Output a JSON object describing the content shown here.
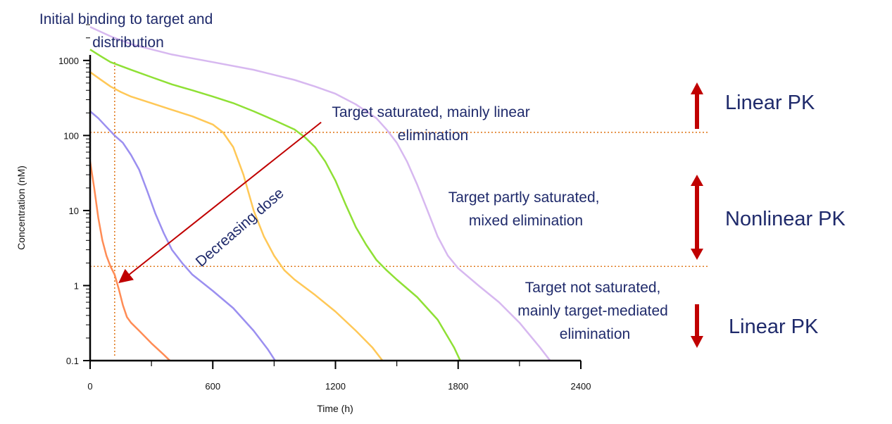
{
  "chart_data": {
    "type": "line",
    "xlabel": "Time (h)",
    "ylabel": "Concentration (nM)",
    "xlim": [
      0,
      2400
    ],
    "ylim": [
      0.1,
      3000
    ],
    "yscale": "log",
    "x_ticks": [
      "0",
      "600",
      "1200",
      "1800",
      "2400"
    ],
    "y_ticks": [
      "0.1",
      "1",
      "10",
      "100",
      "1000"
    ],
    "grid": false,
    "series": [
      {
        "color": "#ff8c55",
        "points": [
          [
            0,
            45
          ],
          [
            20,
            20
          ],
          [
            40,
            8
          ],
          [
            60,
            4
          ],
          [
            80,
            2.5
          ],
          [
            100,
            1.8
          ],
          [
            120,
            1.4
          ],
          [
            140,
            0.9
          ],
          [
            160,
            0.55
          ],
          [
            180,
            0.38
          ],
          [
            200,
            0.32
          ],
          [
            240,
            0.25
          ],
          [
            300,
            0.17
          ],
          [
            360,
            0.12
          ],
          [
            390,
            0.1
          ]
        ]
      },
      {
        "color": "#9b8ff0",
        "points": [
          [
            0,
            210
          ],
          [
            40,
            170
          ],
          [
            80,
            130
          ],
          [
            120,
            100
          ],
          [
            160,
            80
          ],
          [
            200,
            55
          ],
          [
            240,
            35
          ],
          [
            280,
            18
          ],
          [
            320,
            9
          ],
          [
            360,
            5
          ],
          [
            400,
            3
          ],
          [
            450,
            2
          ],
          [
            500,
            1.4
          ],
          [
            600,
            0.85
          ],
          [
            700,
            0.5
          ],
          [
            800,
            0.25
          ],
          [
            870,
            0.14
          ],
          [
            905,
            0.1
          ]
        ]
      },
      {
        "color": "#ffc857",
        "points": [
          [
            0,
            700
          ],
          [
            50,
            560
          ],
          [
            100,
            450
          ],
          [
            150,
            380
          ],
          [
            200,
            330
          ],
          [
            300,
            270
          ],
          [
            400,
            220
          ],
          [
            500,
            180
          ],
          [
            600,
            140
          ],
          [
            650,
            110
          ],
          [
            700,
            70
          ],
          [
            750,
            30
          ],
          [
            800,
            10
          ],
          [
            850,
            4.5
          ],
          [
            900,
            2.5
          ],
          [
            950,
            1.6
          ],
          [
            1000,
            1.2
          ],
          [
            1100,
            0.75
          ],
          [
            1200,
            0.45
          ],
          [
            1300,
            0.25
          ],
          [
            1380,
            0.15
          ],
          [
            1430,
            0.1
          ]
        ]
      },
      {
        "color": "#8fe035",
        "points": [
          [
            0,
            1400
          ],
          [
            50,
            1150
          ],
          [
            100,
            950
          ],
          [
            200,
            750
          ],
          [
            300,
            600
          ],
          [
            400,
            480
          ],
          [
            500,
            400
          ],
          [
            600,
            330
          ],
          [
            700,
            270
          ],
          [
            800,
            210
          ],
          [
            900,
            160
          ],
          [
            1000,
            120
          ],
          [
            1050,
            95
          ],
          [
            1100,
            70
          ],
          [
            1150,
            45
          ],
          [
            1200,
            25
          ],
          [
            1250,
            12
          ],
          [
            1300,
            6
          ],
          [
            1350,
            3.5
          ],
          [
            1400,
            2.2
          ],
          [
            1450,
            1.6
          ],
          [
            1500,
            1.2
          ],
          [
            1600,
            0.7
          ],
          [
            1700,
            0.35
          ],
          [
            1780,
            0.15
          ],
          [
            1810,
            0.1
          ]
        ]
      },
      {
        "color": "#d7b8f0",
        "points": [
          [
            0,
            2800
          ],
          [
            100,
            2100
          ],
          [
            200,
            1650
          ],
          [
            400,
            1200
          ],
          [
            600,
            950
          ],
          [
            800,
            750
          ],
          [
            1000,
            550
          ],
          [
            1100,
            450
          ],
          [
            1200,
            360
          ],
          [
            1300,
            260
          ],
          [
            1400,
            170
          ],
          [
            1450,
            120
          ],
          [
            1500,
            80
          ],
          [
            1550,
            45
          ],
          [
            1600,
            22
          ],
          [
            1650,
            10
          ],
          [
            1700,
            4.5
          ],
          [
            1750,
            2.5
          ],
          [
            1800,
            1.7
          ],
          [
            1900,
            1
          ],
          [
            2000,
            0.6
          ],
          [
            2100,
            0.32
          ],
          [
            2200,
            0.15
          ],
          [
            2250,
            0.1
          ]
        ]
      }
    ],
    "reference_lines": [
      {
        "orientation": "vertical",
        "x": 120,
        "color": "#e07b20"
      },
      {
        "orientation": "horizontal",
        "y": 110,
        "color": "#e07b20"
      },
      {
        "orientation": "horizontal",
        "y": 1.8,
        "color": "#e07b20"
      }
    ],
    "dose_arrow": {
      "from": [
        1130,
        150
      ],
      "to": [
        160,
        1.2
      ],
      "color": "#c00000"
    },
    "annotations": [
      {
        "id": "initial",
        "lines": [
          "Initial binding to target and",
          "distribution"
        ]
      },
      {
        "id": "saturated",
        "lines": [
          "Target saturated, mainly linear",
          "elimination"
        ]
      },
      {
        "id": "partly",
        "lines": [
          "Target partly saturated,",
          "mixed elimination"
        ]
      },
      {
        "id": "notsat",
        "lines": [
          "Target not saturated,",
          "mainly target-mediated",
          "elimination"
        ]
      },
      {
        "id": "dose",
        "lines": [
          "Decreasing dose"
        ]
      }
    ],
    "regime_labels": [
      "Linear PK",
      "Nonlinear PK",
      "Linear PK"
    ]
  }
}
